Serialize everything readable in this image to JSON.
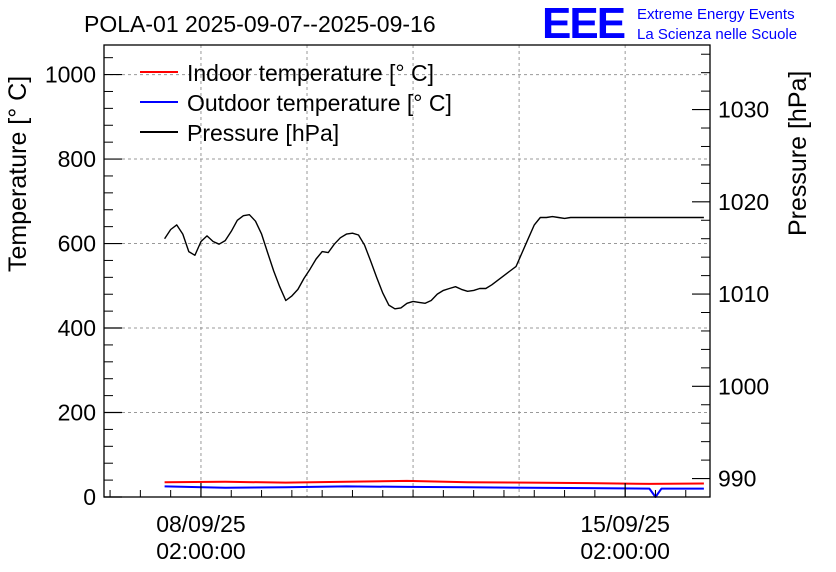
{
  "chart_data": {
    "type": "line",
    "title": "POLA-01 2025-09-07--2025-09-16",
    "logo": {
      "mark": "EEE",
      "line1": "Extreme Energy Events",
      "line2": "La Scienza nelle Scuole"
    },
    "ylabel": "Temperature [° C]",
    "y2label": "Pressure [hPa]",
    "ylim": [
      0,
      1070
    ],
    "y2lim": [
      988,
      1037
    ],
    "yticks": [
      "0",
      "200",
      "400",
      "600",
      "800",
      "1000"
    ],
    "y2ticks": [
      "990",
      "1000",
      "1010",
      "1020",
      "1030"
    ],
    "xlim_days": [
      0,
      10
    ],
    "xticks": [
      {
        "day": 1.6,
        "line1": "08/09/25",
        "line2": "02:00:00"
      },
      {
        "day": 8.6,
        "line1": "15/09/25",
        "line2": "02:00:00"
      }
    ],
    "grid": true,
    "legend": {
      "placement": "top-left"
    },
    "series": [
      {
        "name": "Indoor temperature [° C]",
        "color": "#ff0000",
        "axis": "left",
        "x": [
          1.0,
          2.0,
          3.0,
          4.0,
          5.0,
          6.0,
          7.0,
          8.0,
          9.0,
          9.9
        ],
        "y": [
          35,
          36,
          34,
          36,
          38,
          35,
          34,
          33,
          31,
          32
        ]
      },
      {
        "name": "Outdoor temperature [° C]",
        "color": "#0000ff",
        "axis": "left",
        "x": [
          1.0,
          2.0,
          3.0,
          4.0,
          5.0,
          6.0,
          7.0,
          8.0,
          9.0,
          9.1,
          9.2,
          9.9
        ],
        "y": [
          25,
          22,
          23,
          25,
          24,
          23,
          22,
          21,
          20,
          0,
          20,
          20
        ]
      },
      {
        "name": "Pressure [hPa]",
        "color": "#000000",
        "axis": "right",
        "x": [
          1.0,
          1.1,
          1.2,
          1.3,
          1.4,
          1.5,
          1.6,
          1.7,
          1.8,
          1.9,
          2.0,
          2.1,
          2.2,
          2.3,
          2.4,
          2.5,
          2.6,
          2.7,
          2.8,
          2.9,
          3.0,
          3.1,
          3.2,
          3.3,
          3.4,
          3.5,
          3.6,
          3.7,
          3.8,
          3.9,
          4.0,
          4.1,
          4.2,
          4.3,
          4.4,
          4.5,
          4.6,
          4.7,
          4.8,
          4.9,
          5.0,
          5.1,
          5.2,
          5.3,
          5.4,
          5.5,
          5.6,
          5.7,
          5.8,
          5.9,
          6.0,
          6.1,
          6.2,
          6.3,
          6.4,
          6.5,
          6.6,
          6.7,
          6.8,
          6.9,
          7.0,
          7.1,
          7.2,
          7.3,
          7.4,
          7.5,
          7.6,
          7.7,
          7.8,
          7.9,
          8.0,
          8.1,
          8.2,
          8.3,
          8.4,
          8.5,
          8.6,
          8.7,
          8.8,
          8.9,
          9.0,
          9.1,
          9.2,
          9.3,
          9.4,
          9.5,
          9.6,
          9.7,
          9.8,
          9.9
        ],
        "y": [
          1016.0,
          1017.0,
          1017.5,
          1016.5,
          1014.6,
          1014.2,
          1015.7,
          1016.3,
          1015.7,
          1015.4,
          1015.8,
          1016.8,
          1018.0,
          1018.5,
          1018.6,
          1017.9,
          1016.5,
          1014.5,
          1012.5,
          1010.8,
          1009.3,
          1009.8,
          1010.5,
          1011.7,
          1012.7,
          1013.8,
          1014.6,
          1014.5,
          1015.4,
          1016.1,
          1016.5,
          1016.6,
          1016.4,
          1015.3,
          1013.6,
          1011.8,
          1010.1,
          1008.8,
          1008.4,
          1008.5,
          1009.0,
          1009.2,
          1009.1,
          1009.0,
          1009.3,
          1010.0,
          1010.4,
          1010.6,
          1010.8,
          1010.5,
          1010.3,
          1010.4,
          1010.6,
          1010.6,
          1011.0,
          1011.5,
          1012.0,
          1012.5,
          1013.0,
          1014.5,
          1016.0,
          1017.5,
          1018.3,
          1018.3,
          1018.4,
          1018.3,
          1018.2,
          1018.3,
          1018.3,
          1018.3,
          1018.3,
          1018.3,
          1018.3,
          1018.3,
          1018.3,
          1018.3,
          1018.3,
          1018.3,
          1018.3,
          1018.3,
          1018.3,
          1018.3,
          1018.3,
          1018.3,
          1018.3,
          1018.3,
          1018.3,
          1018.3,
          1018.3,
          1018.3
        ]
      }
    ]
  }
}
